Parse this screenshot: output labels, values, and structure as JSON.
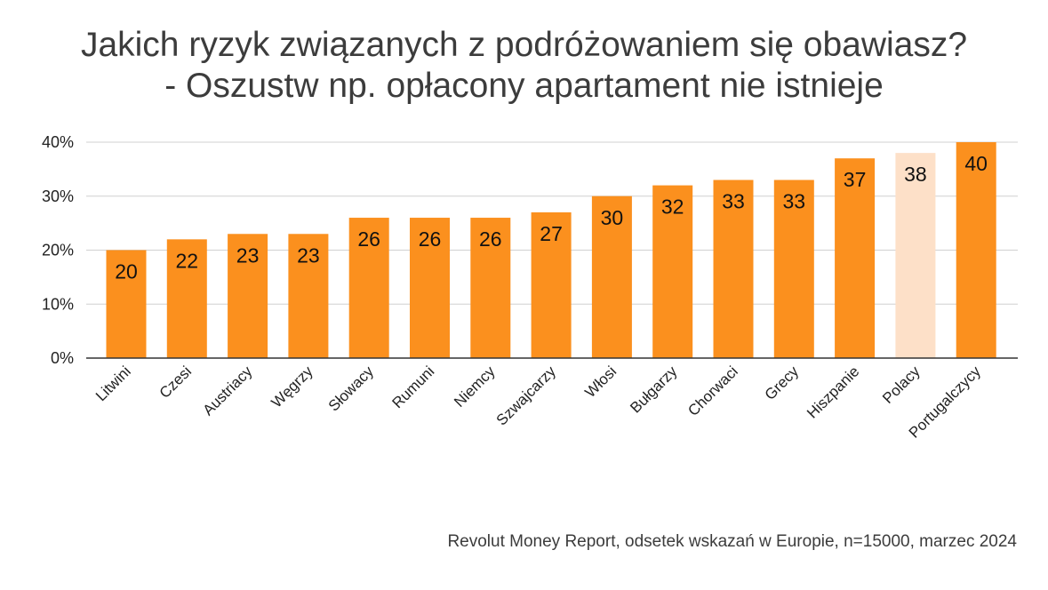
{
  "title_line1": "Jakich ryzyk związanych z podróżowaniem się obawiasz?",
  "title_line2": "- Oszustw np. opłacony apartament nie istnieje",
  "source": "Revolut Money Report, odsetek wskazań w Europie, n=15000, marzec 2024",
  "colors": {
    "bar": "#fb901e",
    "highlight": "#fde0c8",
    "grid": "#d0d0d0",
    "axis": "#333333",
    "text": "#222222"
  },
  "chart_data": {
    "type": "bar",
    "title": "Jakich ryzyk związanych z podróżowaniem się obawiasz? - Oszustw np. opłacony apartament nie istnieje",
    "xlabel": "",
    "ylabel": "",
    "categories": [
      "Litwini",
      "Czesi",
      "Austriacy",
      "Węgrzy",
      "Słowacy",
      "Rumuni",
      "Niemcy",
      "Szwajcarzy",
      "Włosi",
      "Bułgarzy",
      "Chorwaci",
      "Grecy",
      "Hiszpanie",
      "Polacy",
      "Portugalczycy"
    ],
    "values": [
      20,
      22,
      23,
      23,
      26,
      26,
      26,
      27,
      30,
      32,
      33,
      33,
      37,
      38,
      40
    ],
    "highlight_category": "Polacy",
    "ylim": [
      0,
      40
    ],
    "yticks": [
      0,
      10,
      20,
      30,
      40
    ],
    "ytick_labels": [
      "0%",
      "10%",
      "20%",
      "30%",
      "40%"
    ],
    "grid": true,
    "legend": "none"
  }
}
